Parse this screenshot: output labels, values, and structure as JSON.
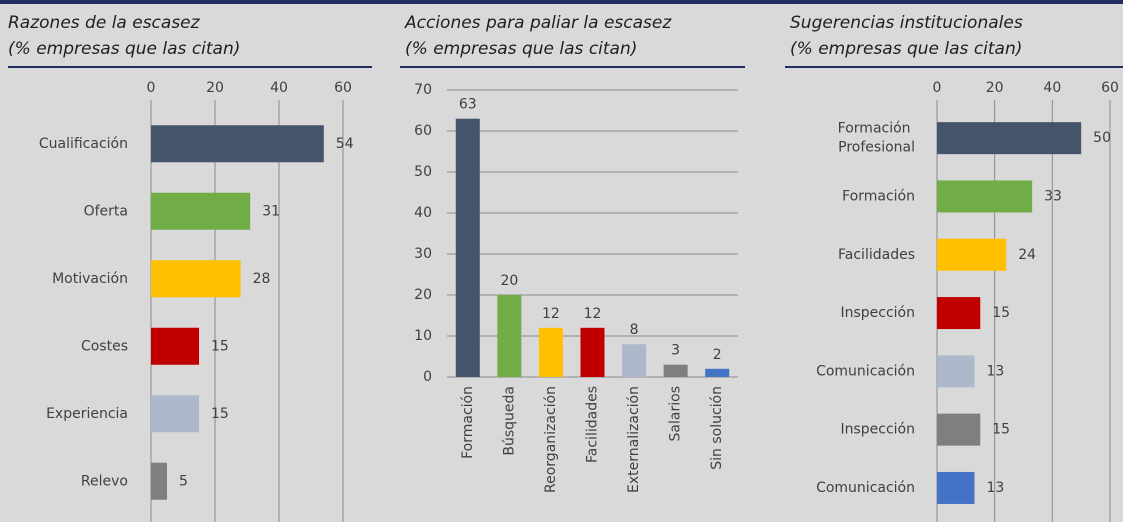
{
  "chart_data": [
    {
      "type": "hbar",
      "title": "Razones de la escasez",
      "subtitle": "(% empresas que las citan)",
      "categories": [
        "Cualificación",
        "Oferta",
        "Motivación",
        "Costes",
        "Experiencia",
        "Relevo"
      ],
      "values": [
        54,
        31,
        28,
        15,
        15,
        5
      ],
      "colors": [
        "#44546a",
        "#70ad47",
        "#ffc000",
        "#c00000",
        "#adb9ca",
        "#7f7f7f"
      ],
      "xlim": [
        0,
        70
      ],
      "xticks": [
        0,
        20,
        40,
        60
      ],
      "grid": true
    },
    {
      "type": "bar",
      "title": "Acciones para paliar la escasez",
      "subtitle": "(% empresas que las citan)",
      "categories": [
        "Formación",
        "Búsqueda",
        "Reorganización",
        "Facilidades",
        "Externalización",
        "Salarios",
        "Sin solución"
      ],
      "values": [
        63,
        20,
        12,
        12,
        8,
        3,
        2
      ],
      "colors": [
        "#44546a",
        "#70ad47",
        "#ffc000",
        "#c00000",
        "#adb9ca",
        "#7f7f7f",
        "#4472c4"
      ],
      "ylim": [
        0,
        70
      ],
      "yticks": [
        0,
        10,
        20,
        30,
        40,
        50,
        60,
        70
      ],
      "grid": true
    },
    {
      "type": "hbar",
      "title": "Sugerencias institucionales",
      "subtitle": "(% empresas que las citan)",
      "categories": [
        "Formación Profesional",
        "Formación",
        "Facilidades",
        "Inspección",
        "Comunicación",
        "Inspección",
        "Comunicación"
      ],
      "values": [
        50,
        33,
        24,
        15,
        13,
        15,
        13
      ],
      "colors": [
        "#44546a",
        "#70ad47",
        "#ffc000",
        "#c00000",
        "#adb9ca",
        "#7f7f7f",
        "#4472c4"
      ],
      "xlim": [
        0,
        60
      ],
      "xticks": [
        0,
        20,
        40,
        60
      ],
      "grid": true
    }
  ]
}
